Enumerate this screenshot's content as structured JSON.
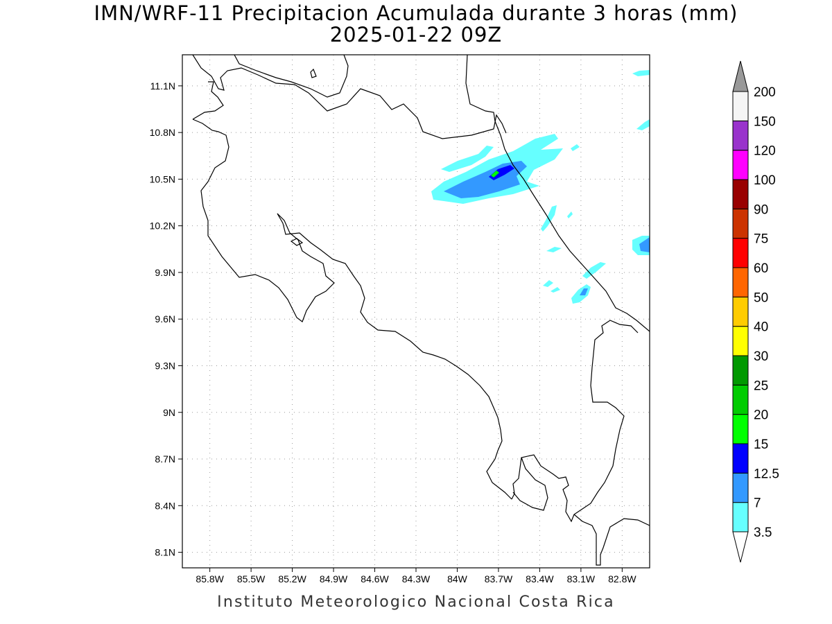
{
  "title": {
    "line1": "IMN/WRF-11 Precipitacion Acumulada durante 3 horas (mm)",
    "line2": "2025-01-22 09Z"
  },
  "credit": "Instituto Meteorologico Nacional Costa Rica",
  "map": {
    "lon_range": [
      -86.0,
      -82.6
    ],
    "lat_range": [
      8.0,
      11.3
    ],
    "lon_ticks": [
      {
        "value": -85.8,
        "label": "85.8W"
      },
      {
        "value": -85.5,
        "label": "85.5W"
      },
      {
        "value": -85.2,
        "label": "85.2W"
      },
      {
        "value": -84.9,
        "label": "84.9W"
      },
      {
        "value": -84.6,
        "label": "84.6W"
      },
      {
        "value": -84.3,
        "label": "84.3W"
      },
      {
        "value": -84.0,
        "label": "84W"
      },
      {
        "value": -83.7,
        "label": "83.7W"
      },
      {
        "value": -83.4,
        "label": "83.4W"
      },
      {
        "value": -83.1,
        "label": "83.1W"
      },
      {
        "value": -82.8,
        "label": "82.8W"
      }
    ],
    "lat_ticks": [
      {
        "value": 11.1,
        "label": "11.1N"
      },
      {
        "value": 10.8,
        "label": "10.8N"
      },
      {
        "value": 10.5,
        "label": "10.5N"
      },
      {
        "value": 10.2,
        "label": "10.2N"
      },
      {
        "value": 9.9,
        "label": "9.9N"
      },
      {
        "value": 9.6,
        "label": "9.6N"
      },
      {
        "value": 9.3,
        "label": "9.3N"
      },
      {
        "value": 9.0,
        "label": "9N"
      },
      {
        "value": 8.7,
        "label": "8.7N"
      },
      {
        "value": 8.4,
        "label": "8.4N"
      },
      {
        "value": 8.1,
        "label": "8.1N"
      }
    ],
    "grid": "dotted"
  },
  "colorbar": {
    "labels": [
      "3.5",
      "7",
      "12.5",
      "15",
      "20",
      "25",
      "30",
      "40",
      "50",
      "60",
      "75",
      "90",
      "100",
      "120",
      "150",
      "200"
    ],
    "colors": [
      "#66ffff",
      "#3399ff",
      "#0000ff",
      "#00ff00",
      "#00cc00",
      "#009900",
      "#ffff00",
      "#ffcc00",
      "#ff6600",
      "#ff0000",
      "#cc3300",
      "#990000",
      "#ff00ff",
      "#9933cc",
      "#f5f5f5"
    ],
    "under_color": "#ffffff",
    "over_color": "#999999"
  }
}
